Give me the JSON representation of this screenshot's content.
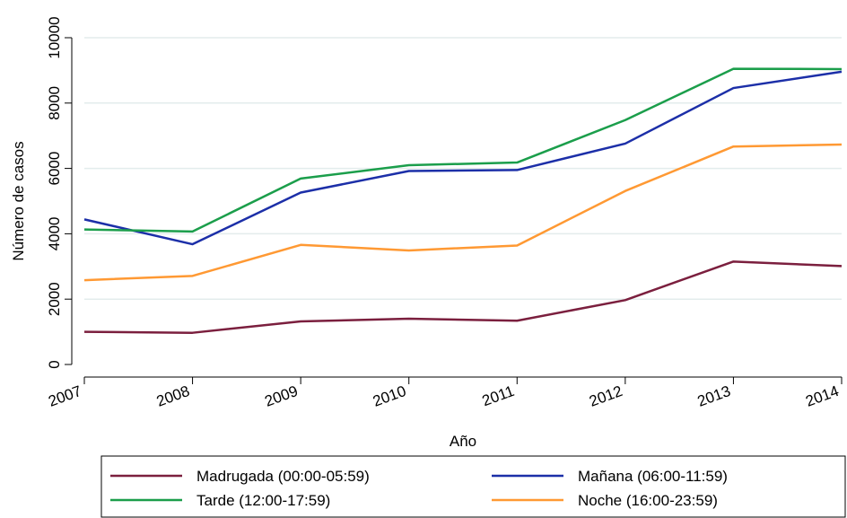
{
  "chart_data": {
    "type": "line",
    "title": "",
    "xlabel": "Año",
    "ylabel": "Número de casos",
    "x": [
      "2007",
      "2008",
      "2009",
      "2010",
      "2011",
      "2012",
      "2013",
      "2014"
    ],
    "ylim": [
      0,
      10000
    ],
    "yticks": [
      "0",
      "2000",
      "4000",
      "6000",
      "8000",
      "10000"
    ],
    "grid": true,
    "legend_position": "bottom",
    "series": [
      {
        "name": "Madrugada (00:00-05:59)",
        "color": "#7b1f3e",
        "values": [
          1000,
          970,
          1320,
          1400,
          1340,
          1970,
          3150,
          3010
        ]
      },
      {
        "name": "Mañana (06:00-11:59)",
        "color": "#1c2fa8",
        "values": [
          4440,
          3680,
          5260,
          5920,
          5950,
          6760,
          8460,
          8960
        ]
      },
      {
        "name": "Tarde (12:00-17:59)",
        "color": "#1b9e4b",
        "values": [
          4130,
          4070,
          5690,
          6100,
          6180,
          7480,
          9050,
          9040
        ]
      },
      {
        "name": "Noche (16:00-23:59)",
        "color": "#ff9933",
        "values": [
          2580,
          2710,
          3660,
          3490,
          3640,
          5310,
          6670,
          6730
        ]
      }
    ]
  }
}
